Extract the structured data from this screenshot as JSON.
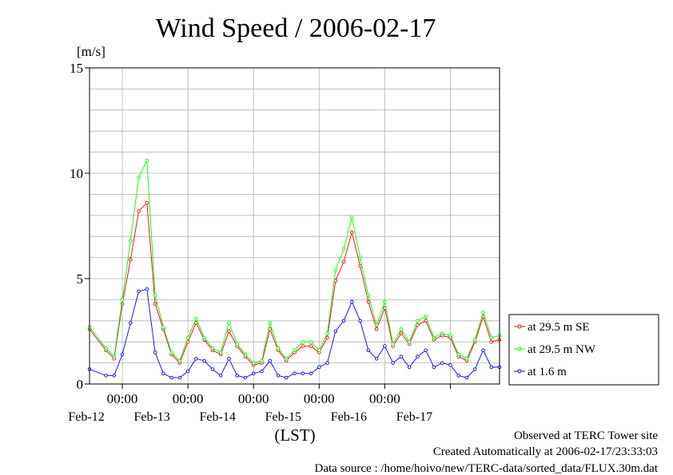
{
  "chart_data": {
    "type": "line",
    "title": "Wind Speed / 2006-02-17",
    "ylabel": "[m/s]",
    "xlabel": "(LST)",
    "ylim": [
      0,
      15
    ],
    "yticks": [
      0,
      5,
      10,
      15
    ],
    "xlim": [
      "2006-02-11T12:00",
      "2006-02-17T18:00"
    ],
    "xtick_labels": [
      {
        "at": "2006-02-12T00:00",
        "time": "00:00",
        "date": "Feb-12"
      },
      {
        "at": "2006-02-13T00:00",
        "time": "00:00",
        "date": "Feb-13"
      },
      {
        "at": "2006-02-14T00:00",
        "time": "00:00",
        "date": "Feb-14"
      },
      {
        "at": "2006-02-15T00:00",
        "time": "00:00",
        "date": "Feb-15"
      },
      {
        "at": "2006-02-16T00:00",
        "time": "00:00",
        "date": "Feb-16"
      },
      {
        "at": "2006-02-17T00:00",
        "time": ""
      }
    ],
    "extra_date_label": {
      "at": "2006-02-17T00:00",
      "text": "Feb-17"
    },
    "grid": true,
    "legend_position": "right",
    "series": [
      {
        "name": "at 29.5 m SE",
        "color": "#ff0000",
        "x": [
          "2006-02-11T12:00",
          "2006-02-11T18:00",
          "2006-02-11T21:00",
          "2006-02-12T00:00",
          "2006-02-12T03:00",
          "2006-02-12T06:00",
          "2006-02-12T09:00",
          "2006-02-12T12:00",
          "2006-02-12T15:00",
          "2006-02-12T18:00",
          "2006-02-12T21:00",
          "2006-02-13T00:00",
          "2006-02-13T03:00",
          "2006-02-13T06:00",
          "2006-02-13T09:00",
          "2006-02-13T12:00",
          "2006-02-13T15:00",
          "2006-02-13T18:00",
          "2006-02-13T21:00",
          "2006-02-14T00:00",
          "2006-02-14T03:00",
          "2006-02-14T06:00",
          "2006-02-14T09:00",
          "2006-02-14T12:00",
          "2006-02-14T15:00",
          "2006-02-14T18:00",
          "2006-02-14T21:00",
          "2006-02-15T00:00",
          "2006-02-15T03:00",
          "2006-02-15T06:00",
          "2006-02-15T09:00",
          "2006-02-15T12:00",
          "2006-02-15T15:00",
          "2006-02-15T18:00",
          "2006-02-15T21:00",
          "2006-02-16T00:00",
          "2006-02-16T03:00",
          "2006-02-16T06:00",
          "2006-02-16T09:00",
          "2006-02-16T12:00",
          "2006-02-16T15:00",
          "2006-02-16T18:00",
          "2006-02-16T21:00",
          "2006-02-17T00:00",
          "2006-02-17T03:00",
          "2006-02-17T06:00",
          "2006-02-17T09:00",
          "2006-02-17T12:00",
          "2006-02-17T15:00",
          "2006-02-17T18:00"
        ],
        "values": [
          2.6,
          1.6,
          1.2,
          3.8,
          5.9,
          8.2,
          8.6,
          3.8,
          2.6,
          1.4,
          1.0,
          2.0,
          2.9,
          2.1,
          1.6,
          1.4,
          2.5,
          1.8,
          1.3,
          0.9,
          1.0,
          2.6,
          1.6,
          1.1,
          1.5,
          1.8,
          1.8,
          1.5,
          2.2,
          4.9,
          5.8,
          7.2,
          5.6,
          3.9,
          2.6,
          3.6,
          1.8,
          2.4,
          1.9,
          2.8,
          3.0,
          2.1,
          2.3,
          2.2,
          1.3,
          1.1,
          2.0,
          3.2,
          2.0,
          2.1
        ]
      },
      {
        "name": "at 29.5 m NW",
        "color": "#00ff00",
        "x": [
          "2006-02-11T12:00",
          "2006-02-11T18:00",
          "2006-02-11T21:00",
          "2006-02-12T00:00",
          "2006-02-12T03:00",
          "2006-02-12T06:00",
          "2006-02-12T09:00",
          "2006-02-12T12:00",
          "2006-02-12T15:00",
          "2006-02-12T18:00",
          "2006-02-12T21:00",
          "2006-02-13T00:00",
          "2006-02-13T03:00",
          "2006-02-13T06:00",
          "2006-02-13T09:00",
          "2006-02-13T12:00",
          "2006-02-13T15:00",
          "2006-02-13T18:00",
          "2006-02-13T21:00",
          "2006-02-14T00:00",
          "2006-02-14T03:00",
          "2006-02-14T06:00",
          "2006-02-14T09:00",
          "2006-02-14T12:00",
          "2006-02-14T15:00",
          "2006-02-14T18:00",
          "2006-02-14T21:00",
          "2006-02-15T00:00",
          "2006-02-15T03:00",
          "2006-02-15T06:00",
          "2006-02-15T09:00",
          "2006-02-15T12:00",
          "2006-02-15T15:00",
          "2006-02-15T18:00",
          "2006-02-15T21:00",
          "2006-02-16T00:00",
          "2006-02-16T03:00",
          "2006-02-16T06:00",
          "2006-02-16T09:00",
          "2006-02-16T12:00",
          "2006-02-16T15:00",
          "2006-02-16T18:00",
          "2006-02-16T21:00",
          "2006-02-17T00:00",
          "2006-02-17T03:00",
          "2006-02-17T06:00",
          "2006-02-17T09:00",
          "2006-02-17T12:00",
          "2006-02-17T15:00",
          "2006-02-17T18:00"
        ],
        "values": [
          2.7,
          1.7,
          1.3,
          4.0,
          6.8,
          9.8,
          10.6,
          4.2,
          2.7,
          1.5,
          1.1,
          2.2,
          3.1,
          2.2,
          1.7,
          1.5,
          2.9,
          1.9,
          1.4,
          1.0,
          1.1,
          2.9,
          1.7,
          1.2,
          1.6,
          2.0,
          2.0,
          1.6,
          2.4,
          5.4,
          6.4,
          7.9,
          6.0,
          4.2,
          2.8,
          3.9,
          1.9,
          2.6,
          2.0,
          3.0,
          3.2,
          2.2,
          2.4,
          2.3,
          1.4,
          1.2,
          2.1,
          3.4,
          2.2,
          2.3
        ]
      },
      {
        "name": "at 1.6 m",
        "color": "#0000ff",
        "x": [
          "2006-02-11T12:00",
          "2006-02-11T18:00",
          "2006-02-11T21:00",
          "2006-02-12T00:00",
          "2006-02-12T03:00",
          "2006-02-12T06:00",
          "2006-02-12T09:00",
          "2006-02-12T12:00",
          "2006-02-12T15:00",
          "2006-02-12T18:00",
          "2006-02-12T21:00",
          "2006-02-13T00:00",
          "2006-02-13T03:00",
          "2006-02-13T06:00",
          "2006-02-13T09:00",
          "2006-02-13T12:00",
          "2006-02-13T15:00",
          "2006-02-13T18:00",
          "2006-02-13T21:00",
          "2006-02-14T00:00",
          "2006-02-14T03:00",
          "2006-02-14T06:00",
          "2006-02-14T09:00",
          "2006-02-14T12:00",
          "2006-02-14T15:00",
          "2006-02-14T18:00",
          "2006-02-14T21:00",
          "2006-02-15T00:00",
          "2006-02-15T03:00",
          "2006-02-15T06:00",
          "2006-02-15T09:00",
          "2006-02-15T12:00",
          "2006-02-15T15:00",
          "2006-02-15T18:00",
          "2006-02-15T21:00",
          "2006-02-16T00:00",
          "2006-02-16T03:00",
          "2006-02-16T06:00",
          "2006-02-16T09:00",
          "2006-02-16T12:00",
          "2006-02-16T15:00",
          "2006-02-16T18:00",
          "2006-02-16T21:00",
          "2006-02-17T00:00",
          "2006-02-17T03:00",
          "2006-02-17T06:00",
          "2006-02-17T09:00",
          "2006-02-17T12:00",
          "2006-02-17T15:00",
          "2006-02-17T18:00"
        ],
        "values": [
          0.7,
          0.4,
          0.4,
          1.4,
          2.9,
          4.4,
          4.5,
          1.5,
          0.5,
          0.3,
          0.3,
          0.6,
          1.2,
          1.1,
          0.7,
          0.4,
          1.2,
          0.4,
          0.3,
          0.5,
          0.6,
          1.1,
          0.4,
          0.3,
          0.5,
          0.5,
          0.5,
          0.8,
          1.0,
          2.5,
          3.0,
          3.9,
          3.0,
          1.6,
          1.2,
          1.8,
          1.0,
          1.3,
          0.8,
          1.3,
          1.6,
          0.8,
          1.0,
          0.9,
          0.4,
          0.3,
          0.7,
          1.6,
          0.8,
          0.8
        ]
      }
    ]
  },
  "footer": {
    "line1": "Observed at TERC Tower site",
    "line2": "Created Automatically at 2006-02-17/23:33:03",
    "line3": "Data source : /home/hoivo/new/TERC-data/sorted_data/FLUX.30m.dat"
  }
}
